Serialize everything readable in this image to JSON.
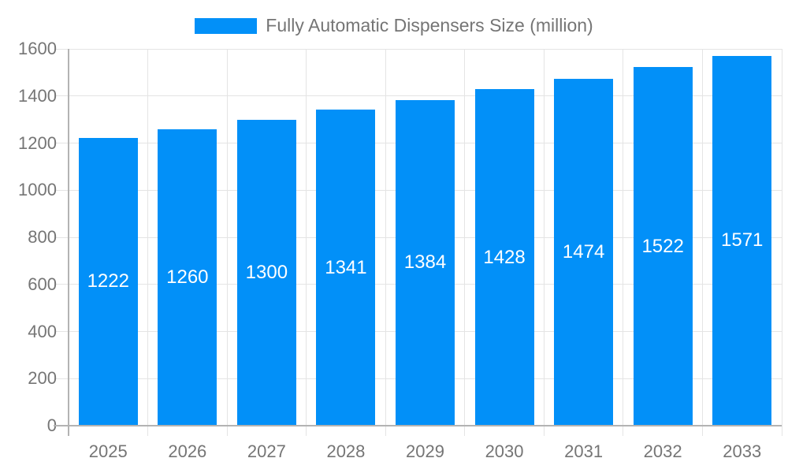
{
  "chart_data": {
    "type": "bar",
    "title": "Fully Automatic Dispensers Size (million)",
    "legend": [
      "Fully Automatic Dispensers Size (million)"
    ],
    "legend_position": "top",
    "categories": [
      "2025",
      "2026",
      "2027",
      "2028",
      "2029",
      "2030",
      "2031",
      "2032",
      "2033"
    ],
    "values": [
      1222,
      1260,
      1300,
      1341,
      1384,
      1428,
      1474,
      1522,
      1571
    ],
    "value_labels_shown": true,
    "xlabel": "",
    "ylabel": "",
    "ylim": [
      0,
      1600
    ],
    "ytick_step": 200,
    "yticks": [
      0,
      200,
      400,
      600,
      800,
      1000,
      1200,
      1400,
      1600
    ],
    "grid": true,
    "colors": {
      "bar": "#0290F8",
      "value_label": "#FFFFFF",
      "axis_text": "#757575",
      "legend_text": "#757575",
      "gridline": "#E4E4E4",
      "axis_line": "#B3B3B3",
      "background": "#FFFFFF"
    }
  }
}
